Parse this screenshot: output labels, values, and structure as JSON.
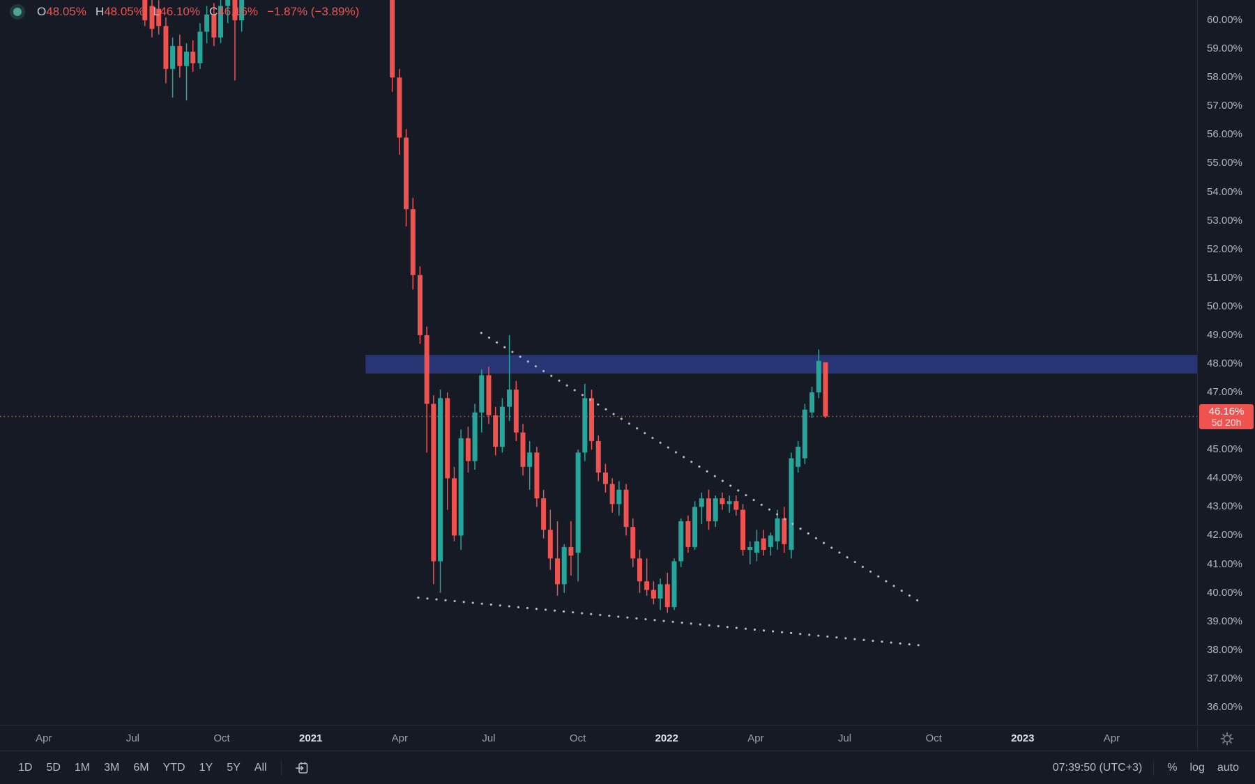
{
  "legend": {
    "items": [
      {
        "key": "open",
        "label": "O",
        "value": "48.05%"
      },
      {
        "key": "high",
        "label": "H",
        "value": "48.05%"
      },
      {
        "key": "low",
        "label": "L",
        "value": "46.10%"
      },
      {
        "key": "close",
        "label": "C",
        "value": "46.16%"
      }
    ],
    "change": "−1.87% (−3.89%)"
  },
  "toolbar": {
    "ranges": [
      "1D",
      "5D",
      "1M",
      "3M",
      "6M",
      "YTD",
      "1Y",
      "5Y",
      "All"
    ],
    "clock": "07:39:50 (UTC+3)",
    "scale_buttons": [
      "%",
      "log",
      "auto"
    ]
  },
  "colors": {
    "background": "#161a25",
    "up": "#26a69a",
    "down": "#ef5350",
    "zone": "#283575",
    "trendline": "#b4b9c4",
    "axis_text": "#b2b6c1",
    "axis_text_major": "#dde1e8",
    "border": "#2a2e39",
    "price_tag_bg": "#ef5350",
    "legend_label": "#c7ccd6",
    "legend_value": "#ef5350"
  },
  "chart_data": {
    "type": "candlestick",
    "interval": "weekly",
    "unit": "%",
    "x_domain": [
      2020.127,
      2023.49
    ],
    "y_domain": [
      35.39,
      60.708
    ],
    "y_ticks": [
      60,
      59,
      58,
      57,
      56,
      55,
      54,
      53,
      52,
      51,
      50,
      49,
      48,
      47,
      46,
      45,
      44,
      43,
      42,
      41,
      40,
      39,
      38,
      37,
      36
    ],
    "x_ticks": [
      {
        "label": "Apr",
        "t": 2020.25,
        "major": false
      },
      {
        "label": "Jul",
        "t": 2020.5,
        "major": false
      },
      {
        "label": "Oct",
        "t": 2020.75,
        "major": false
      },
      {
        "label": "2021",
        "t": 2021.0,
        "major": true
      },
      {
        "label": "Apr",
        "t": 2021.25,
        "major": false
      },
      {
        "label": "Jul",
        "t": 2021.5,
        "major": false
      },
      {
        "label": "Oct",
        "t": 2021.75,
        "major": false
      },
      {
        "label": "2022",
        "t": 2022.0,
        "major": true
      },
      {
        "label": "Apr",
        "t": 2022.25,
        "major": false
      },
      {
        "label": "Jul",
        "t": 2022.5,
        "major": false
      },
      {
        "label": "Oct",
        "t": 2022.75,
        "major": false
      },
      {
        "label": "2023",
        "t": 2023.0,
        "major": true
      },
      {
        "label": "Apr",
        "t": 2023.25,
        "major": false
      }
    ],
    "current_price": 46.16,
    "current_price_label": "46.16%",
    "countdown": "5d 20h",
    "resistance_zone": {
      "t_from": 2021.154,
      "t_to": 2023.49,
      "price_from": 47.66,
      "price_to": 48.31
    },
    "trendlines": [
      {
        "name": "upper",
        "x1": 2021.479,
        "y1": 49.08,
        "x2": 2022.714,
        "y2": 39.66,
        "style": "dotted"
      },
      {
        "name": "lower",
        "x1": 2021.302,
        "y1": 39.83,
        "x2": 2022.716,
        "y2": 38.16,
        "style": "dotted"
      }
    ],
    "columns": [
      "t",
      "open",
      "high",
      "low",
      "close"
    ],
    "candles": [
      [
        2020.534,
        61.0,
        61.3,
        59.8,
        60.0
      ],
      [
        2020.554,
        60.5,
        60.8,
        59.4,
        59.7
      ],
      [
        2020.573,
        60.4,
        60.7,
        59.5,
        59.8
      ],
      [
        2020.593,
        59.8,
        60.1,
        57.8,
        58.3
      ],
      [
        2020.612,
        58.3,
        59.4,
        57.3,
        59.1
      ],
      [
        2020.632,
        59.1,
        59.5,
        58.0,
        58.4
      ],
      [
        2020.651,
        58.4,
        59.2,
        57.2,
        58.9
      ],
      [
        2020.669,
        58.9,
        59.3,
        58.2,
        58.5
      ],
      [
        2020.689,
        58.5,
        59.9,
        58.3,
        59.6
      ],
      [
        2020.708,
        59.6,
        60.5,
        59.2,
        60.2
      ],
      [
        2020.728,
        60.2,
        60.6,
        59.1,
        59.4
      ],
      [
        2020.747,
        59.4,
        60.8,
        59.2,
        60.5
      ],
      [
        2020.767,
        60.5,
        61.4,
        59.9,
        61.1
      ],
      [
        2020.787,
        61.1,
        61.4,
        57.9,
        60.0
      ],
      [
        2020.806,
        60.0,
        61.6,
        59.6,
        61.3
      ],
      [
        2021.229,
        62.6,
        62.9,
        57.5,
        58.0
      ],
      [
        2021.249,
        58.0,
        58.3,
        55.3,
        55.9
      ],
      [
        2021.268,
        55.9,
        56.2,
        52.8,
        53.4
      ],
      [
        2021.287,
        53.4,
        53.8,
        50.6,
        51.1
      ],
      [
        2021.307,
        51.1,
        51.4,
        48.7,
        49.0
      ],
      [
        2021.326,
        49.0,
        49.3,
        44.9,
        46.6
      ],
      [
        2021.345,
        46.6,
        46.9,
        40.3,
        41.1
      ],
      [
        2021.364,
        41.1,
        47.1,
        40.0,
        46.8
      ],
      [
        2021.384,
        46.8,
        47.0,
        42.9,
        44.0
      ],
      [
        2021.403,
        44.0,
        44.4,
        41.8,
        42.0
      ],
      [
        2021.422,
        42.0,
        45.7,
        41.5,
        45.4
      ],
      [
        2021.442,
        45.4,
        45.8,
        44.2,
        44.6
      ],
      [
        2021.461,
        44.6,
        46.6,
        44.3,
        46.3
      ],
      [
        2021.48,
        46.3,
        47.8,
        45.6,
        47.6
      ],
      [
        2021.5,
        47.6,
        47.9,
        45.9,
        46.2
      ],
      [
        2021.519,
        46.2,
        46.5,
        44.8,
        45.1
      ],
      [
        2021.538,
        45.1,
        46.8,
        44.9,
        46.5
      ],
      [
        2021.558,
        46.5,
        49.0,
        46.0,
        47.1
      ],
      [
        2021.577,
        47.1,
        47.4,
        45.3,
        45.6
      ],
      [
        2021.596,
        45.6,
        45.9,
        44.1,
        44.4
      ],
      [
        2021.615,
        44.4,
        45.3,
        43.6,
        44.9
      ],
      [
        2021.635,
        44.9,
        45.1,
        43.0,
        43.3
      ],
      [
        2021.654,
        43.3,
        43.6,
        41.9,
        42.2
      ],
      [
        2021.673,
        42.2,
        42.9,
        40.8,
        41.2
      ],
      [
        2021.693,
        41.2,
        42.5,
        39.9,
        40.3
      ],
      [
        2021.712,
        40.3,
        41.7,
        40.0,
        41.6
      ],
      [
        2021.731,
        41.6,
        42.5,
        40.6,
        41.3
      ],
      [
        2021.751,
        41.4,
        45.0,
        40.4,
        44.9
      ],
      [
        2021.77,
        44.9,
        47.3,
        44.6,
        46.8
      ],
      [
        2021.789,
        46.8,
        47.1,
        45.0,
        45.3
      ],
      [
        2021.808,
        45.3,
        45.5,
        43.9,
        44.2
      ],
      [
        2021.828,
        44.2,
        44.5,
        43.5,
        43.8
      ],
      [
        2021.847,
        43.8,
        44.0,
        42.8,
        43.1
      ],
      [
        2021.866,
        43.1,
        43.9,
        42.7,
        43.6
      ],
      [
        2021.886,
        43.6,
        43.8,
        42.0,
        42.3
      ],
      [
        2021.905,
        42.3,
        42.6,
        40.9,
        41.2
      ],
      [
        2021.924,
        41.2,
        41.5,
        40.0,
        40.4
      ],
      [
        2021.944,
        40.4,
        41.2,
        39.9,
        40.1
      ],
      [
        2021.963,
        40.1,
        40.4,
        39.6,
        39.8
      ],
      [
        2021.982,
        39.8,
        40.5,
        39.4,
        40.3
      ],
      [
        2022.002,
        40.3,
        40.7,
        39.3,
        39.5
      ],
      [
        2022.021,
        39.5,
        41.2,
        39.4,
        41.1
      ],
      [
        2022.04,
        41.1,
        42.6,
        40.9,
        42.5
      ],
      [
        2022.06,
        42.5,
        42.7,
        41.4,
        41.6
      ],
      [
        2022.079,
        41.6,
        43.2,
        41.5,
        43.0
      ],
      [
        2022.098,
        43.0,
        43.5,
        42.4,
        43.3
      ],
      [
        2022.118,
        43.3,
        43.6,
        42.2,
        42.5
      ],
      [
        2022.137,
        42.5,
        43.4,
        42.3,
        43.3
      ],
      [
        2022.156,
        43.3,
        43.5,
        42.9,
        43.1
      ],
      [
        2022.176,
        43.1,
        43.4,
        42.8,
        43.2
      ],
      [
        2022.195,
        43.2,
        43.4,
        42.7,
        42.9
      ],
      [
        2022.214,
        42.9,
        43.1,
        41.3,
        41.5
      ],
      [
        2022.234,
        41.5,
        41.8,
        41.0,
        41.6
      ],
      [
        2022.253,
        41.4,
        42.2,
        41.1,
        41.8
      ],
      [
        2022.272,
        41.9,
        42.2,
        41.3,
        41.5
      ],
      [
        2022.292,
        41.6,
        42.1,
        41.3,
        42.0
      ],
      [
        2022.311,
        41.8,
        42.9,
        41.5,
        42.6
      ],
      [
        2022.33,
        42.6,
        43.0,
        41.4,
        41.7
      ],
      [
        2022.35,
        41.5,
        44.9,
        41.2,
        44.7
      ],
      [
        2022.369,
        44.4,
        45.3,
        44.2,
        45.1
      ],
      [
        2022.388,
        44.7,
        46.6,
        44.5,
        46.4
      ],
      [
        2022.408,
        46.3,
        47.2,
        46.1,
        47.0
      ],
      [
        2022.427,
        47.0,
        48.5,
        46.8,
        48.1
      ],
      [
        2022.446,
        48.05,
        48.05,
        46.1,
        46.16
      ]
    ]
  }
}
